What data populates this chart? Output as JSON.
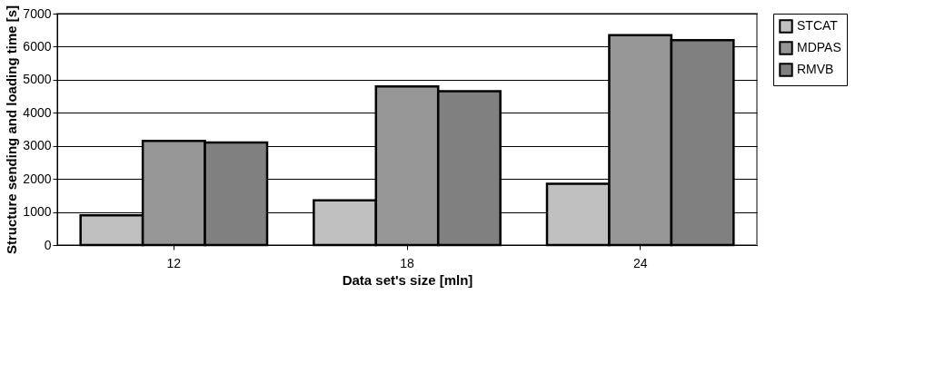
{
  "chart_data": {
    "type": "bar",
    "xlabel": "Data set's size [mln]",
    "ylabel": "Structure sending and loading time [s]",
    "categories": [
      "12",
      "18",
      "24"
    ],
    "series": [
      {
        "name": "STCAT",
        "color": "#c0c0c0",
        "values": [
          900,
          1350,
          1850
        ]
      },
      {
        "name": "MDPAS",
        "color": "#969696",
        "values": [
          3150,
          4800,
          6350
        ]
      },
      {
        "name": "RMVB",
        "color": "#808080",
        "values": [
          3100,
          4650,
          6200
        ]
      }
    ],
    "ylim": [
      0,
      7000
    ],
    "yticks": [
      0,
      1000,
      2000,
      3000,
      4000,
      5000,
      6000,
      7000
    ],
    "grid": "y",
    "legend": "right"
  }
}
